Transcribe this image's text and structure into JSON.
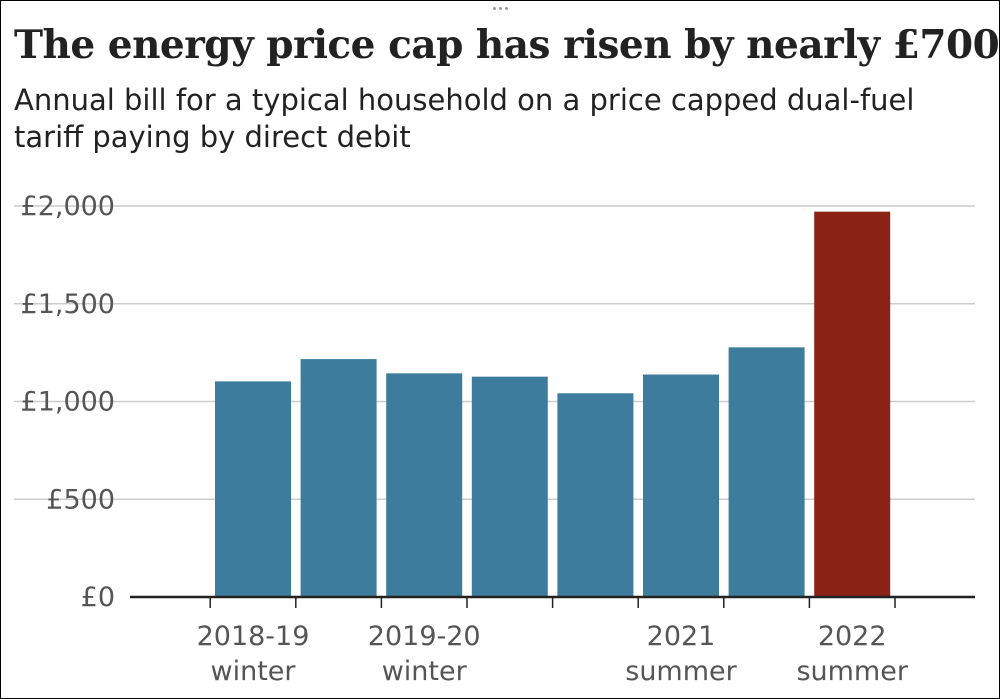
{
  "header": {
    "title": "The energy price cap has risen by nearly £700",
    "subtitle": "Annual bill for a typical household on a price capped dual-fuel tariff paying by direct debit"
  },
  "colors": {
    "bar": "#3d7c9c",
    "highlight": "#8a2315",
    "grid": "#cccccc",
    "axis": "#222222",
    "text": "#555555"
  },
  "chart_data": {
    "type": "bar",
    "title": "The energy price cap has risen by nearly £700",
    "subtitle": "Annual bill for a typical household on a price capped dual-fuel tariff paying by direct debit",
    "values": [
      1103,
      1217,
      1144,
      1127,
      1042,
      1138,
      1277,
      1971
    ],
    "highlight_index": 7,
    "ylim": [
      0,
      2000
    ],
    "yticks": [
      0,
      500,
      1000,
      1500,
      2000
    ],
    "ytick_labels": [
      "£0",
      "£500",
      "£1,000",
      "£1,500",
      "£2,000"
    ],
    "xtick_labels": [
      {
        "line1": "2018-19",
        "line2": "winter",
        "at": 0.5
      },
      {
        "line1": "2019-20",
        "line2": "winter",
        "at": 2.5
      },
      {
        "line1": "2021",
        "line2": "summer",
        "at": 5.5
      },
      {
        "line1": "2022",
        "line2": "summer",
        "at": 7.5
      }
    ],
    "grid": true
  }
}
